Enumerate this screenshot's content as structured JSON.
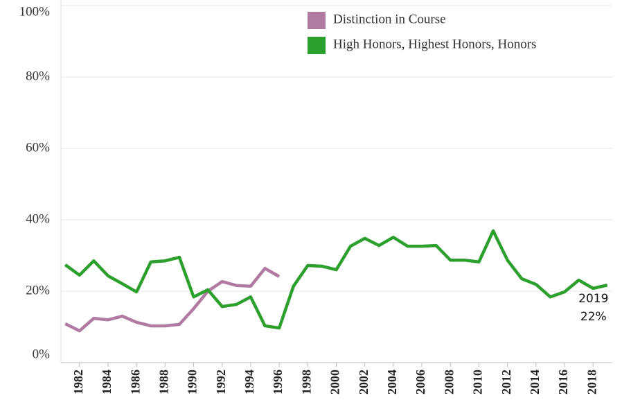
{
  "chart_data": {
    "type": "line",
    "x": [
      1981,
      1982,
      1983,
      1984,
      1985,
      1986,
      1987,
      1988,
      1989,
      1990,
      1991,
      1992,
      1993,
      1994,
      1995,
      1996,
      1997,
      1998,
      1999,
      2000,
      2001,
      2002,
      2003,
      2004,
      2005,
      2006,
      2007,
      2008,
      2009,
      2010,
      2011,
      2012,
      2013,
      2014,
      2015,
      2016,
      2017,
      2018,
      2019
    ],
    "series": [
      {
        "name": "Distinction in Course",
        "color": "#b07aa1",
        "values": [
          10.9,
          8.9,
          12.4,
          12.0,
          13.0,
          11.3,
          10.3,
          10.3,
          10.7,
          15.1,
          20.0,
          22.7,
          21.6,
          21.4,
          26.4,
          24.1,
          null,
          null,
          null,
          null,
          null,
          null,
          null,
          null,
          null,
          null,
          null,
          null,
          null,
          null,
          null,
          null,
          null,
          null,
          null,
          null,
          null,
          null,
          null
        ]
      },
      {
        "name": "High Honors, Highest Honors, Honors",
        "color": "#2ca02c",
        "values": [
          27.4,
          24.5,
          28.5,
          24.3,
          22.1,
          19.8,
          28.2,
          28.5,
          29.5,
          18.4,
          20.4,
          15.7,
          16.3,
          18.4,
          10.3,
          9.7,
          21.4,
          27.2,
          27.0,
          26.0,
          32.6,
          34.8,
          32.8,
          35.1,
          32.6,
          32.6,
          32.8,
          28.7,
          28.7,
          28.2,
          36.9,
          28.7,
          23.5,
          21.9,
          18.4,
          19.8,
          23.1,
          20.8,
          21.7
        ]
      }
    ],
    "annotation": {
      "x_label": "2019",
      "value_label": "22%"
    },
    "xlim": [
      1980.7,
      2019.35
    ],
    "xticks": [
      1982,
      1984,
      1986,
      1988,
      1990,
      1992,
      1994,
      1996,
      1998,
      2000,
      2002,
      2004,
      2006,
      2008,
      2010,
      2012,
      2014,
      2016,
      2018
    ],
    "ylim": [
      0,
      100
    ],
    "yticks": [
      {
        "value": 0,
        "label": "0%"
      },
      {
        "value": 20,
        "label": "20%"
      },
      {
        "value": 40,
        "label": "40%"
      },
      {
        "value": 60,
        "label": "60%"
      },
      {
        "value": 80,
        "label": "80%"
      },
      {
        "value": 100,
        "label": "100%"
      }
    ],
    "grid": true
  }
}
